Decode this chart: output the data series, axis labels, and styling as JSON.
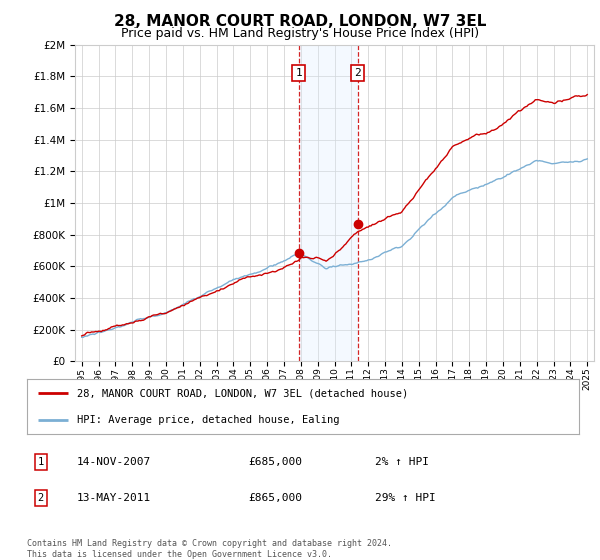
{
  "title": "28, MANOR COURT ROAD, LONDON, W7 3EL",
  "subtitle": "Price paid vs. HM Land Registry's House Price Index (HPI)",
  "title_fontsize": 11,
  "subtitle_fontsize": 9,
  "ylim": [
    0,
    2000000
  ],
  "yticks": [
    0,
    200000,
    400000,
    600000,
    800000,
    1000000,
    1200000,
    1400000,
    1600000,
    1800000,
    2000000
  ],
  "ytick_labels": [
    "£0",
    "£200K",
    "£400K",
    "£600K",
    "£800K",
    "£1M",
    "£1.2M",
    "£1.4M",
    "£1.6M",
    "£1.8M",
    "£2M"
  ],
  "xlim_start": 1994.6,
  "xlim_end": 2025.4,
  "xticks": [
    1995,
    1996,
    1997,
    1998,
    1999,
    2000,
    2001,
    2002,
    2003,
    2004,
    2005,
    2006,
    2007,
    2008,
    2009,
    2010,
    2011,
    2012,
    2013,
    2014,
    2015,
    2016,
    2017,
    2018,
    2019,
    2020,
    2021,
    2022,
    2023,
    2024,
    2025
  ],
  "red_line_color": "#cc0000",
  "blue_line_color": "#7bafd4",
  "sale1_x": 2007.87,
  "sale1_y": 685000,
  "sale2_x": 2011.37,
  "sale2_y": 865000,
  "shade_color": "#ddeeff",
  "dashed_color": "#cc0000",
  "legend_line1": "28, MANOR COURT ROAD, LONDON, W7 3EL (detached house)",
  "legend_line2": "HPI: Average price, detached house, Ealing",
  "table_row1_num": "1",
  "table_row1_date": "14-NOV-2007",
  "table_row1_price": "£685,000",
  "table_row1_hpi": "2% ↑ HPI",
  "table_row2_num": "2",
  "table_row2_date": "13-MAY-2011",
  "table_row2_price": "£865,000",
  "table_row2_hpi": "29% ↑ HPI",
  "footer": "Contains HM Land Registry data © Crown copyright and database right 2024.\nThis data is licensed under the Open Government Licence v3.0.",
  "background_color": "#ffffff",
  "grid_color": "#cccccc"
}
